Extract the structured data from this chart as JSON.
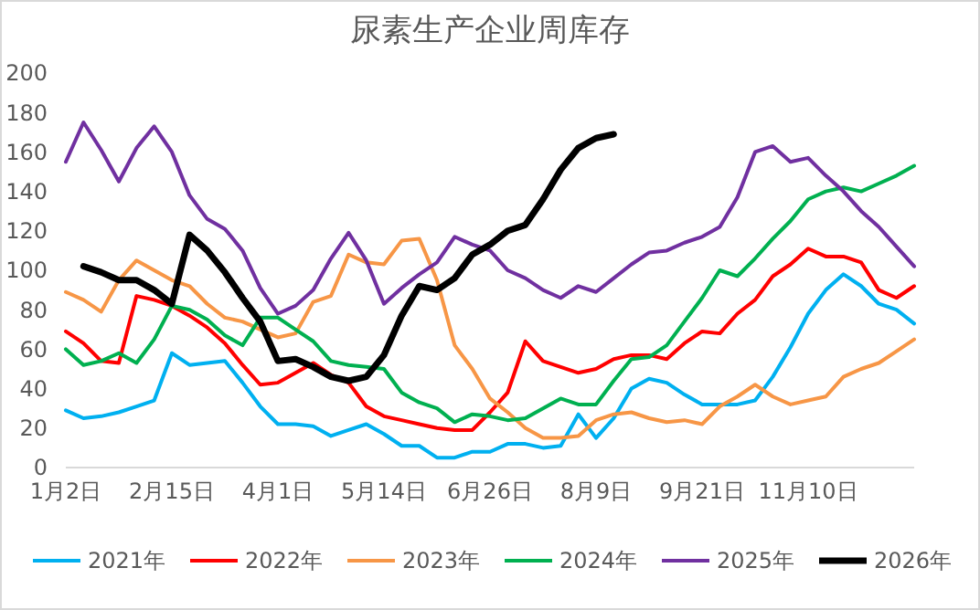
{
  "chart_data": {
    "type": "line",
    "title": "尿素生产企业周库存",
    "categories": [
      "1月2日",
      null,
      null,
      null,
      null,
      null,
      "2月15日",
      null,
      null,
      null,
      null,
      null,
      "4月1日",
      null,
      null,
      null,
      null,
      null,
      "5月14日",
      null,
      null,
      null,
      null,
      null,
      "6月26日",
      null,
      null,
      null,
      null,
      null,
      "8月9日",
      null,
      null,
      null,
      null,
      null,
      "9月21日",
      null,
      null,
      null,
      null,
      null,
      "11月10日",
      null,
      null,
      null,
      null,
      null,
      null
    ],
    "ylim": [
      0,
      200
    ],
    "yticks": [
      0,
      20,
      40,
      60,
      80,
      100,
      120,
      140,
      160,
      180,
      200
    ],
    "grid": false,
    "legend": "bottom",
    "marker": "none",
    "line_style": "solid",
    "series": [
      {
        "name": "2021年",
        "color": "#00b0f0",
        "values": [
          29,
          25,
          26,
          28,
          31,
          34,
          58,
          52,
          53,
          54,
          43,
          31,
          22,
          22,
          21,
          16,
          19,
          22,
          17,
          11,
          11,
          5,
          5,
          8,
          8,
          12,
          12,
          10,
          11,
          27,
          15,
          25,
          40,
          45,
          43,
          37,
          32,
          32,
          32,
          34,
          46,
          61,
          78,
          90,
          98,
          92,
          83,
          80,
          73
        ]
      },
      {
        "name": "2022年",
        "color": "#ff0000",
        "values": [
          69,
          63,
          54,
          53,
          87,
          85,
          82,
          77,
          71,
          63,
          52,
          42,
          43,
          48,
          53,
          47,
          43,
          31,
          26,
          24,
          22,
          20,
          19,
          19,
          28,
          38,
          64,
          54,
          51,
          48,
          50,
          55,
          57,
          57,
          55,
          63,
          69,
          68,
          78,
          85,
          97,
          103,
          111,
          107,
          107,
          104,
          90,
          86,
          92
        ]
      },
      {
        "name": "2023年",
        "color": "#f79646",
        "values": [
          89,
          85,
          79,
          95,
          105,
          100,
          95,
          92,
          83,
          76,
          74,
          70,
          66,
          68,
          84,
          87,
          108,
          104,
          103,
          115,
          116,
          95,
          62,
          50,
          35,
          28,
          20,
          15,
          15,
          16,
          24,
          27,
          28,
          25,
          23,
          24,
          22,
          31,
          36,
          42,
          36,
          32,
          34,
          36,
          46,
          50,
          53,
          59,
          65
        ]
      },
      {
        "name": "2024年",
        "color": "#00b050",
        "values": [
          60,
          52,
          54,
          58,
          53,
          65,
          82,
          80,
          75,
          67,
          62,
          76,
          76,
          70,
          64,
          54,
          52,
          51,
          50,
          38,
          33,
          30,
          23,
          27,
          26,
          24,
          25,
          30,
          35,
          32,
          32,
          44,
          55,
          56,
          62,
          74,
          86,
          100,
          97,
          106,
          116,
          125,
          136,
          140,
          142,
          140,
          144,
          148,
          153
        ]
      },
      {
        "name": "2025年",
        "color": "#7030a0",
        "values": [
          155,
          175,
          161,
          145,
          162,
          173,
          160,
          138,
          126,
          121,
          110,
          91,
          78,
          82,
          90,
          106,
          119,
          105,
          83,
          91,
          98,
          104,
          117,
          113,
          110,
          100,
          96,
          90,
          86,
          92,
          89,
          96,
          103,
          109,
          110,
          114,
          117,
          122,
          137,
          160,
          163,
          155,
          157,
          148,
          140,
          130,
          122,
          112,
          102
        ]
      },
      {
        "name": "2026年",
        "color": "#000000",
        "values": [
          null,
          102,
          99,
          95,
          95,
          90,
          83,
          118,
          110,
          99,
          86,
          74,
          54,
          55,
          51,
          46,
          44,
          46,
          57,
          77,
          92,
          90,
          96,
          108,
          113,
          120,
          123,
          136,
          151,
          162,
          167,
          169,
          null,
          null,
          null,
          null,
          null,
          null,
          null,
          null,
          null,
          null,
          null,
          null,
          null,
          null,
          null,
          null,
          null
        ]
      }
    ]
  }
}
